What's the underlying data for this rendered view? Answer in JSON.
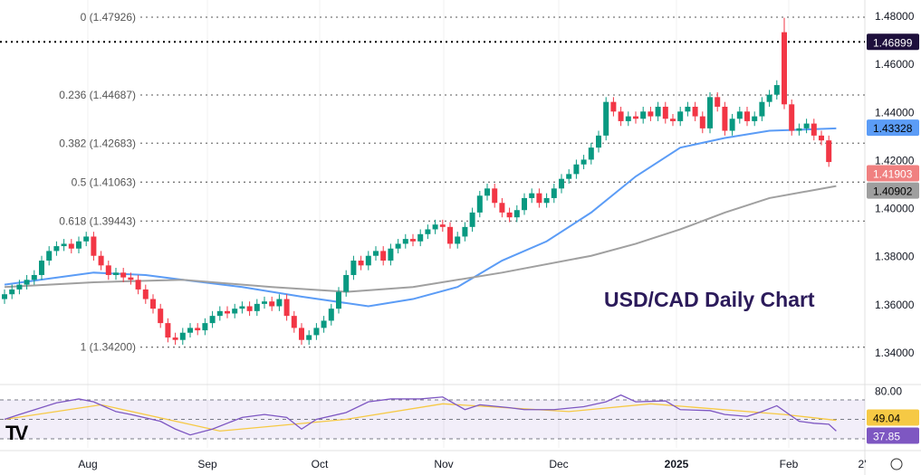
{
  "chart_data": {
    "type": "candlestick",
    "title": "USD/CAD Daily Chart",
    "ylim": [
      1.34,
      1.48
    ],
    "y_ticks": [
      "1.48000",
      "1.46000",
      "1.44000",
      "1.42000",
      "1.40000",
      "1.38000",
      "1.36000",
      "1.34000"
    ],
    "x_ticks": [
      "Aug",
      "Sep",
      "Oct",
      "Nov",
      "Dec",
      "2025",
      "Feb",
      "2'"
    ],
    "closes": [
      1.364,
      1.366,
      1.368,
      1.37,
      1.372,
      1.378,
      1.382,
      1.384,
      1.385,
      1.383,
      1.386,
      1.388,
      1.38,
      1.376,
      1.372,
      1.373,
      1.371,
      1.37,
      1.366,
      1.362,
      1.358,
      1.352,
      1.346,
      1.345,
      1.348,
      1.35,
      1.349,
      1.352,
      1.355,
      1.357,
      1.356,
      1.358,
      1.359,
      1.357,
      1.36,
      1.361,
      1.359,
      1.362,
      1.355,
      1.35,
      1.345,
      1.347,
      1.35,
      1.353,
      1.358,
      1.365,
      1.372,
      1.378,
      1.376,
      1.38,
      1.382,
      1.378,
      1.383,
      1.385,
      1.387,
      1.386,
      1.389,
      1.391,
      1.393,
      1.392,
      1.385,
      1.388,
      1.392,
      1.398,
      1.405,
      1.408,
      1.402,
      1.398,
      1.396,
      1.399,
      1.404,
      1.406,
      1.402,
      1.404,
      1.408,
      1.412,
      1.414,
      1.418,
      1.42,
      1.425,
      1.43,
      1.444,
      1.44,
      1.436,
      1.438,
      1.437,
      1.44,
      1.438,
      1.442,
      1.437,
      1.436,
      1.44,
      1.442,
      1.438,
      1.433,
      1.446,
      1.442,
      1.432,
      1.437,
      1.44,
      1.436,
      1.438,
      1.444,
      1.447,
      1.451,
      1.443,
      1.432,
      1.433,
      1.435,
      1.43,
      1.428,
      1.419
    ],
    "gap_candle": {
      "index": 105,
      "open": 1.473,
      "high": 1.479
    },
    "moving_averages": [
      {
        "color": "#5b9cf6",
        "points": [
          [
            0,
            1.368
          ],
          [
            12,
            1.373
          ],
          [
            19,
            1.372
          ],
          [
            24,
            1.37
          ],
          [
            32,
            1.367
          ],
          [
            40,
            1.363
          ],
          [
            49,
            1.359
          ],
          [
            55,
            1.362
          ],
          [
            61,
            1.367
          ],
          [
            67,
            1.378
          ],
          [
            73,
            1.386
          ],
          [
            79,
            1.398
          ],
          [
            85,
            1.413
          ],
          [
            91,
            1.425
          ],
          [
            97,
            1.429
          ],
          [
            103,
            1.432
          ],
          [
            112,
            1.433
          ]
        ]
      },
      {
        "color": "#a0a0a0",
        "points": [
          [
            0,
            1.367
          ],
          [
            12,
            1.369
          ],
          [
            24,
            1.37
          ],
          [
            36,
            1.367
          ],
          [
            46,
            1.365
          ],
          [
            55,
            1.367
          ],
          [
            67,
            1.373
          ],
          [
            79,
            1.38
          ],
          [
            85,
            1.385
          ],
          [
            91,
            1.391
          ],
          [
            97,
            1.398
          ],
          [
            103,
            1.404
          ],
          [
            112,
            1.409
          ]
        ]
      }
    ],
    "fib_levels": [
      {
        "label": "0 (1.47926)",
        "value": 1.47926
      },
      {
        "label": "0.236 (1.44687)",
        "value": 1.44687
      },
      {
        "label": "0.382 (1.42683)",
        "value": 1.42683
      },
      {
        "label": "0.5 (1.41063)",
        "value": 1.41063
      },
      {
        "label": "0.618 (1.39443)",
        "value": 1.39443
      },
      {
        "label": "1 (1.34200)",
        "value": 1.342
      }
    ],
    "horizontal_line": 1.46899,
    "price_labels": [
      {
        "text": "1.46899",
        "value": 1.46899,
        "bg": "#1e0f3c",
        "fg": "#ffffff"
      },
      {
        "text": "1.43328",
        "value": 1.43328,
        "bg": "#5b9cf6",
        "fg": "#000000"
      },
      {
        "text": "1.41903",
        "value": 1.41903,
        "bg": "#f08080",
        "fg": "#ffffff"
      },
      {
        "text": "1.40902",
        "value": 1.40902,
        "bg": "#9e9e9e",
        "fg": "#000000"
      }
    ],
    "rsi": {
      "levels": [
        70,
        50,
        30
      ],
      "tick": "80.00",
      "values": [
        [
          0,
          50
        ],
        [
          2,
          55
        ],
        [
          7,
          67
        ],
        [
          10,
          71
        ],
        [
          12,
          68
        ],
        [
          15,
          58
        ],
        [
          17,
          55
        ],
        [
          21,
          48
        ],
        [
          23,
          40
        ],
        [
          25,
          34
        ],
        [
          28,
          40
        ],
        [
          32,
          52
        ],
        [
          35,
          55
        ],
        [
          38,
          52
        ],
        [
          40,
          40
        ],
        [
          42,
          50
        ],
        [
          46,
          57
        ],
        [
          49,
          68
        ],
        [
          52,
          71
        ],
        [
          56,
          71
        ],
        [
          59,
          73
        ],
        [
          62,
          60
        ],
        [
          64,
          65
        ],
        [
          68,
          62
        ],
        [
          70,
          60
        ],
        [
          74,
          60
        ],
        [
          78,
          63
        ],
        [
          81,
          68
        ],
        [
          83,
          75
        ],
        [
          85,
          68
        ],
        [
          89,
          69
        ],
        [
          91,
          60
        ],
        [
          95,
          59
        ],
        [
          97,
          55
        ],
        [
          100,
          53
        ],
        [
          102,
          58
        ],
        [
          104,
          64
        ],
        [
          107,
          48
        ],
        [
          109,
          46
        ],
        [
          111,
          45
        ],
        [
          112,
          38
        ]
      ],
      "ma": [
        [
          0,
          50
        ],
        [
          13,
          65
        ],
        [
          29,
          38
        ],
        [
          46,
          50
        ],
        [
          59,
          66
        ],
        [
          76,
          58
        ],
        [
          87,
          66
        ],
        [
          105,
          55
        ],
        [
          112,
          49
        ]
      ],
      "labels": [
        {
          "text": "49.04",
          "value": 49.04,
          "bg": "#f6c944"
        },
        {
          "text": "37.85",
          "value": 37.85,
          "bg": "#7e57c2"
        }
      ]
    },
    "colors": {
      "up": "#089981",
      "down": "#f23645"
    }
  }
}
